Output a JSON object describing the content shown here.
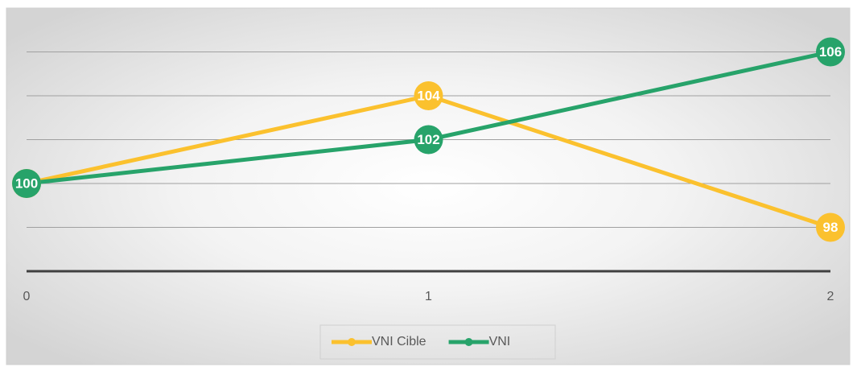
{
  "chart_data": {
    "type": "line",
    "x": [
      0,
      1,
      2
    ],
    "xlim": [
      0,
      2
    ],
    "xticks": [
      0,
      1,
      2
    ],
    "ylim": [
      96,
      108
    ],
    "yticks": [
      96,
      98,
      100,
      102,
      104,
      106
    ],
    "grid": true,
    "legend": "bottom",
    "series": [
      {
        "name": "VNI Cible",
        "color": "#fbc12e",
        "values": [
          100,
          104,
          98
        ]
      },
      {
        "name": "VNI",
        "color": "#27a36a",
        "values": [
          100,
          102,
          106
        ]
      }
    ]
  }
}
